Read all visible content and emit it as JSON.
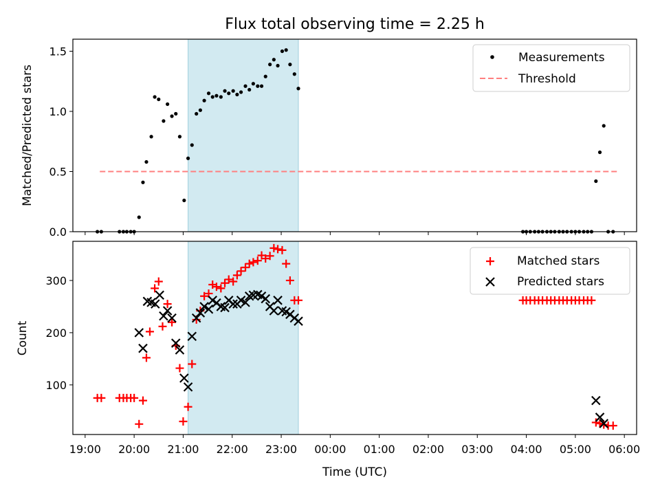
{
  "title": "Flux total observing time = 2.25 h",
  "xlabel": "Time (UTC)",
  "x_ticks": [
    "19:00",
    "20:00",
    "21:00",
    "22:00",
    "23:00",
    "00:00",
    "01:00",
    "02:00",
    "03:00",
    "04:00",
    "05:00",
    "06:00"
  ],
  "colors": {
    "measurement": "#000000",
    "threshold": "#ff7f7f",
    "matched": "#ff0000",
    "predicted": "#000000",
    "span": "#add8e6"
  },
  "chart_data": [
    {
      "type": "scatter",
      "ylabel": "Matched/Predicted stars",
      "ylim": [
        0,
        1.6
      ],
      "xlim_hours": [
        18.75,
        30.25
      ],
      "y_ticks": [
        "0.0",
        "0.5",
        "1.0",
        "1.5"
      ],
      "highlight_span_hours": [
        21.1,
        23.35
      ],
      "legend_position": "top-right",
      "series": [
        {
          "name": "Measurements",
          "type": "scatter",
          "x": [
            19.25,
            19.33,
            19.7,
            19.78,
            19.85,
            19.93,
            20.0,
            20.1,
            20.18,
            20.25,
            20.35,
            20.42,
            20.5,
            20.6,
            20.68,
            20.77,
            20.85,
            20.93,
            21.02,
            21.1,
            21.18,
            21.27,
            21.35,
            21.43,
            21.52,
            21.6,
            21.68,
            21.77,
            21.85,
            21.93,
            22.02,
            22.1,
            22.18,
            22.27,
            22.35,
            22.43,
            22.52,
            22.6,
            22.68,
            22.77,
            22.85,
            22.93,
            23.02,
            23.1,
            23.18,
            23.27,
            23.35,
            27.93,
            28.0,
            28.08,
            28.17,
            28.25,
            28.33,
            28.42,
            28.5,
            28.58,
            28.67,
            28.75,
            28.83,
            28.92,
            29.0,
            29.08,
            29.17,
            29.25,
            29.33,
            29.42,
            29.5,
            29.58,
            29.67,
            29.77
          ],
          "y": [
            0,
            0,
            0,
            0,
            0,
            0,
            0,
            0.12,
            0.41,
            0.58,
            0.79,
            1.12,
            1.1,
            0.92,
            1.06,
            0.96,
            0.98,
            0.79,
            0.26,
            0.61,
            0.72,
            0.98,
            1.01,
            1.09,
            1.15,
            1.12,
            1.13,
            1.12,
            1.17,
            1.15,
            1.17,
            1.14,
            1.16,
            1.21,
            1.18,
            1.23,
            1.21,
            1.21,
            1.29,
            1.39,
            1.43,
            1.38,
            1.5,
            1.51,
            1.39,
            1.31,
            1.19,
            0,
            0,
            0,
            0,
            0,
            0,
            0,
            0,
            0,
            0,
            0,
            0,
            0,
            0,
            0,
            0,
            0,
            0,
            0.42,
            0.66,
            0.88,
            0,
            0
          ]
        },
        {
          "name": "Threshold",
          "type": "line",
          "x": [
            19.3,
            29.85
          ],
          "y": [
            0.5,
            0.5
          ]
        }
      ]
    },
    {
      "type": "scatter",
      "ylabel": "Count",
      "ylim": [
        5,
        375
      ],
      "xlim_hours": [
        18.75,
        30.25
      ],
      "y_ticks": [
        "100",
        "200",
        "300"
      ],
      "highlight_span_hours": [
        21.1,
        23.35
      ],
      "legend_position": "top-right",
      "series": [
        {
          "name": "Matched stars",
          "type": "scatter",
          "x": [
            19.25,
            19.33,
            19.7,
            19.78,
            19.85,
            19.93,
            20.0,
            20.1,
            20.18,
            20.25,
            20.32,
            20.42,
            20.5,
            20.58,
            20.68,
            20.77,
            20.85,
            20.93,
            21.0,
            21.1,
            21.18,
            21.27,
            21.35,
            21.43,
            21.52,
            21.6,
            21.68,
            21.77,
            21.85,
            21.93,
            22.02,
            22.1,
            22.18,
            22.27,
            22.35,
            22.43,
            22.52,
            22.6,
            22.68,
            22.77,
            22.85,
            22.93,
            23.02,
            23.1,
            23.18,
            23.27,
            23.35,
            27.93,
            28.0,
            28.08,
            28.17,
            28.25,
            28.33,
            28.42,
            28.5,
            28.58,
            28.67,
            28.75,
            28.83,
            28.92,
            29.0,
            29.08,
            29.17,
            29.25,
            29.33,
            29.42,
            29.5,
            29.58,
            29.67,
            29.77
          ],
          "y": [
            75,
            75,
            75,
            75,
            75,
            75,
            75,
            25,
            70,
            152,
            202,
            285,
            298,
            212,
            255,
            220,
            175,
            132,
            30,
            58,
            140,
            225,
            242,
            270,
            275,
            292,
            288,
            285,
            295,
            302,
            298,
            310,
            318,
            325,
            332,
            335,
            338,
            348,
            342,
            347,
            362,
            360,
            358,
            332,
            300,
            262,
            262,
            262,
            262,
            262,
            262,
            262,
            262,
            262,
            262,
            262,
            262,
            262,
            262,
            262,
            262,
            262,
            262,
            262,
            262,
            28,
            26,
            24,
            22,
            22
          ]
        },
        {
          "name": "Predicted stars",
          "type": "scatter",
          "x": [
            20.1,
            20.18,
            20.27,
            20.35,
            20.43,
            20.52,
            20.6,
            20.68,
            20.77,
            20.85,
            20.93,
            21.02,
            21.1,
            21.18,
            21.27,
            21.35,
            21.43,
            21.52,
            21.6,
            21.68,
            21.77,
            21.85,
            21.93,
            22.02,
            22.1,
            22.18,
            22.27,
            22.35,
            22.43,
            22.52,
            22.6,
            22.68,
            22.77,
            22.85,
            22.93,
            23.02,
            23.1,
            23.18,
            23.27,
            23.35,
            29.42,
            29.5,
            29.58
          ],
          "y": [
            200,
            170,
            260,
            258,
            255,
            272,
            232,
            242,
            228,
            180,
            167,
            113,
            96,
            193,
            228,
            238,
            250,
            245,
            262,
            257,
            250,
            248,
            262,
            255,
            255,
            262,
            258,
            270,
            272,
            273,
            270,
            265,
            250,
            242,
            262,
            242,
            240,
            235,
            228,
            222,
            70,
            38,
            26
          ]
        }
      ]
    }
  ]
}
